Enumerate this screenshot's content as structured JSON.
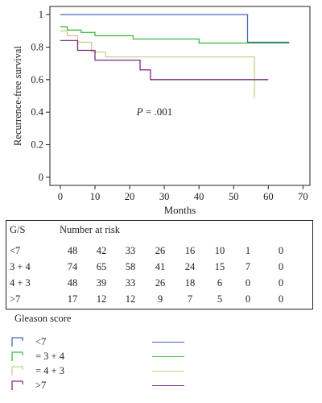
{
  "chart_data": {
    "type": "line",
    "subtype": "step",
    "ylabel": "Recurrence-free survival",
    "xlabel": "Months",
    "annotation_prefix": "P",
    "annotation_value": " = .001",
    "xlim": [
      -3,
      72
    ],
    "ylim": [
      -0.05,
      1.05
    ],
    "xticks": [
      0,
      10,
      20,
      30,
      40,
      50,
      60,
      70
    ],
    "yticks": [
      0,
      0.2,
      0.4,
      0.6,
      0.8,
      1
    ],
    "series": [
      {
        "name": "<7",
        "color": "#4a63b8",
        "x": [
          0,
          54,
          54,
          66
        ],
        "y": [
          1.0,
          1.0,
          0.83,
          0.83
        ]
      },
      {
        "name": "= 3 + 4",
        "color": "#3fba45",
        "x": [
          0,
          2,
          2,
          6,
          6,
          10,
          10,
          21,
          21,
          40,
          40,
          66
        ],
        "y": [
          0.925,
          0.925,
          0.905,
          0.905,
          0.89,
          0.89,
          0.87,
          0.87,
          0.85,
          0.85,
          0.825,
          0.825
        ]
      },
      {
        "name": "= 4 + 3",
        "color": "#c9d08a",
        "x": [
          0,
          2,
          2,
          5,
          5,
          9,
          9,
          13,
          13,
          23,
          23,
          56,
          56
        ],
        "y": [
          0.9,
          0.9,
          0.87,
          0.87,
          0.83,
          0.83,
          0.77,
          0.77,
          0.74,
          0.74,
          0.74,
          0.74,
          0.49
        ]
      },
      {
        "name": ">7",
        "color": "#7a2a84",
        "x": [
          0,
          5,
          5,
          10,
          10,
          23,
          23,
          26,
          26,
          60
        ],
        "y": [
          0.84,
          0.84,
          0.78,
          0.78,
          0.72,
          0.72,
          0.66,
          0.66,
          0.6,
          0.6
        ]
      }
    ]
  },
  "risk_table": {
    "label_col": "G/S",
    "header": "Number at risk",
    "rows": [
      {
        "label": "<7",
        "values": [
          "48",
          "42",
          "33",
          "26",
          "16",
          "10",
          "1",
          "0"
        ]
      },
      {
        "label": "3 + 4",
        "values": [
          "74",
          "65",
          "58",
          "41",
          "24",
          "15",
          "7",
          "0"
        ]
      },
      {
        "label": "4 + 3",
        "values": [
          "48",
          "39",
          "33",
          "26",
          "18",
          "6",
          "0",
          "0"
        ]
      },
      {
        "label": ">7",
        "values": [
          "17",
          "12",
          "12",
          "9",
          "7",
          "5",
          "0",
          "0"
        ]
      }
    ]
  },
  "legend": {
    "title": "Gleason score",
    "items": [
      {
        "label": "<7",
        "color": "#4a63b8"
      },
      {
        "label": "= 3 + 4",
        "color": "#3fba45"
      },
      {
        "label": "= 4 + 3",
        "color": "#c9d08a"
      },
      {
        "label": ">7",
        "color": "#7a2a84"
      }
    ]
  }
}
